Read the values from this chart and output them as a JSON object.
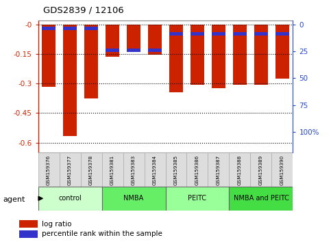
{
  "title": "GDS2839 / 12106",
  "samples": [
    "GSM159376",
    "GSM159377",
    "GSM159378",
    "GSM159381",
    "GSM159383",
    "GSM159384",
    "GSM159385",
    "GSM159386",
    "GSM159387",
    "GSM159388",
    "GSM159389",
    "GSM159390"
  ],
  "log_ratio": [
    -0.315,
    -0.565,
    -0.375,
    -0.165,
    -0.138,
    -0.155,
    -0.345,
    -0.305,
    -0.325,
    -0.305,
    -0.305,
    -0.275
  ],
  "percentile_rank": [
    3.5,
    3.5,
    3.5,
    22.0,
    22.0,
    22.0,
    8.0,
    8.0,
    8.0,
    8.0,
    8.0,
    8.0
  ],
  "bar_color": "#cc2200",
  "pct_color": "#3333cc",
  "groups": [
    {
      "label": "control",
      "start": 0,
      "end": 3,
      "color": "#ccffcc"
    },
    {
      "label": "NMBA",
      "start": 3,
      "end": 6,
      "color": "#66ee66"
    },
    {
      "label": "PEITC",
      "start": 6,
      "end": 9,
      "color": "#99ff99"
    },
    {
      "label": "NMBA and PEITC",
      "start": 9,
      "end": 12,
      "color": "#44dd44"
    }
  ],
  "ylim_left": [
    -0.65,
    0.02
  ],
  "ylim_right": [
    0,
    110
  ],
  "yticks_left": [
    0,
    -0.15,
    -0.3,
    -0.45,
    -0.6
  ],
  "yticks_right": [
    0,
    25,
    50,
    75,
    100
  ],
  "ylabel_left_color": "#cc2200",
  "ylabel_right_color": "#2244cc",
  "background_color": "#ffffff",
  "grid_color": "#000000",
  "bar_width": 0.65,
  "agent_label": "agent",
  "legend_log_ratio": "log ratio",
  "legend_pct": "percentile rank within the sample"
}
